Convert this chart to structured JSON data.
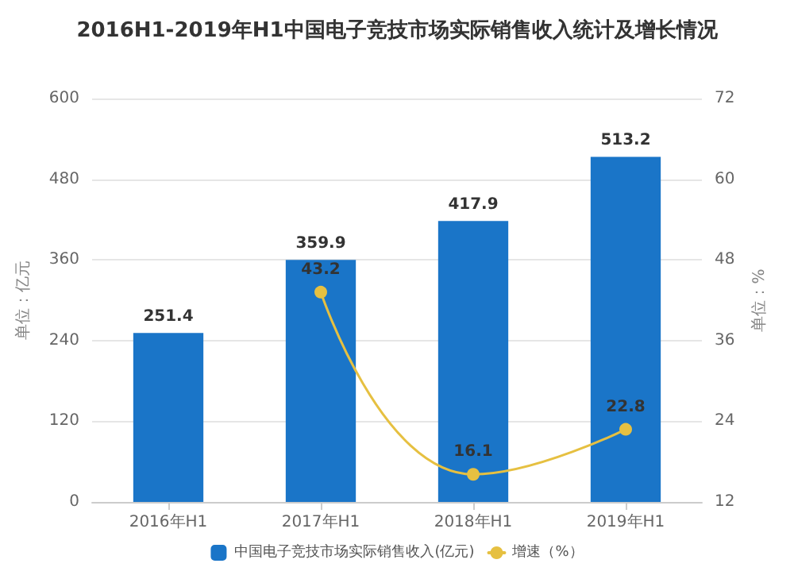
{
  "chart_data": {
    "type": "bar",
    "title": "2016H1-2019年H1中国电子竞技市场实际销售收入统计及增长情况",
    "ylabel": "单位：亿元",
    "y2label": "单位：%",
    "categories": [
      "2016年H1",
      "2017年H1",
      "2018年H1",
      "2019年H1"
    ],
    "series": [
      {
        "name": "中国电子竞技市场实际销售收入(亿元)",
        "color": "#1a75c8",
        "values": [
          251.4,
          359.9,
          417.9,
          513.2
        ]
      },
      {
        "name": "增速（%）",
        "type": "line",
        "axis": "y2",
        "color": "#e6c041",
        "values": [
          null,
          43.2,
          16.1,
          22.8
        ]
      }
    ],
    "ylim": [
      0,
      600
    ],
    "yticks": [
      0,
      120,
      240,
      360,
      480,
      600
    ],
    "y2lim": [
      12,
      72
    ],
    "y2ticks": [
      12,
      24,
      36,
      48,
      60,
      72
    ],
    "data_labels": true,
    "grid": "y",
    "legend": "bottom",
    "marker": "circle"
  }
}
